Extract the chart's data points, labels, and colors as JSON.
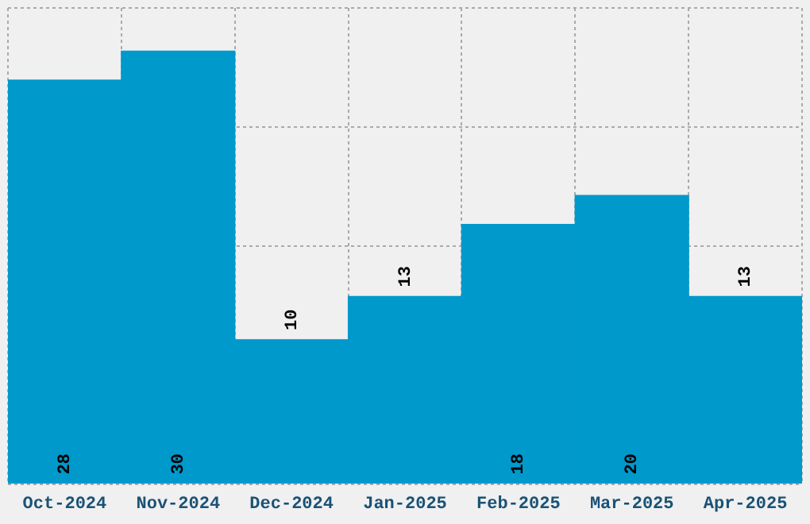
{
  "chart_data": {
    "type": "bar",
    "categories": [
      "Oct-2024",
      "Nov-2024",
      "Dec-2024",
      "Jan-2025",
      "Feb-2025",
      "Mar-2025",
      "Apr-2025"
    ],
    "values": [
      28,
      30,
      10,
      13,
      18,
      20,
      13
    ],
    "color": "#0099cc",
    "ylim": [
      0,
      33
    ],
    "tick_labels": "x",
    "grid": true,
    "data_labels": true
  }
}
